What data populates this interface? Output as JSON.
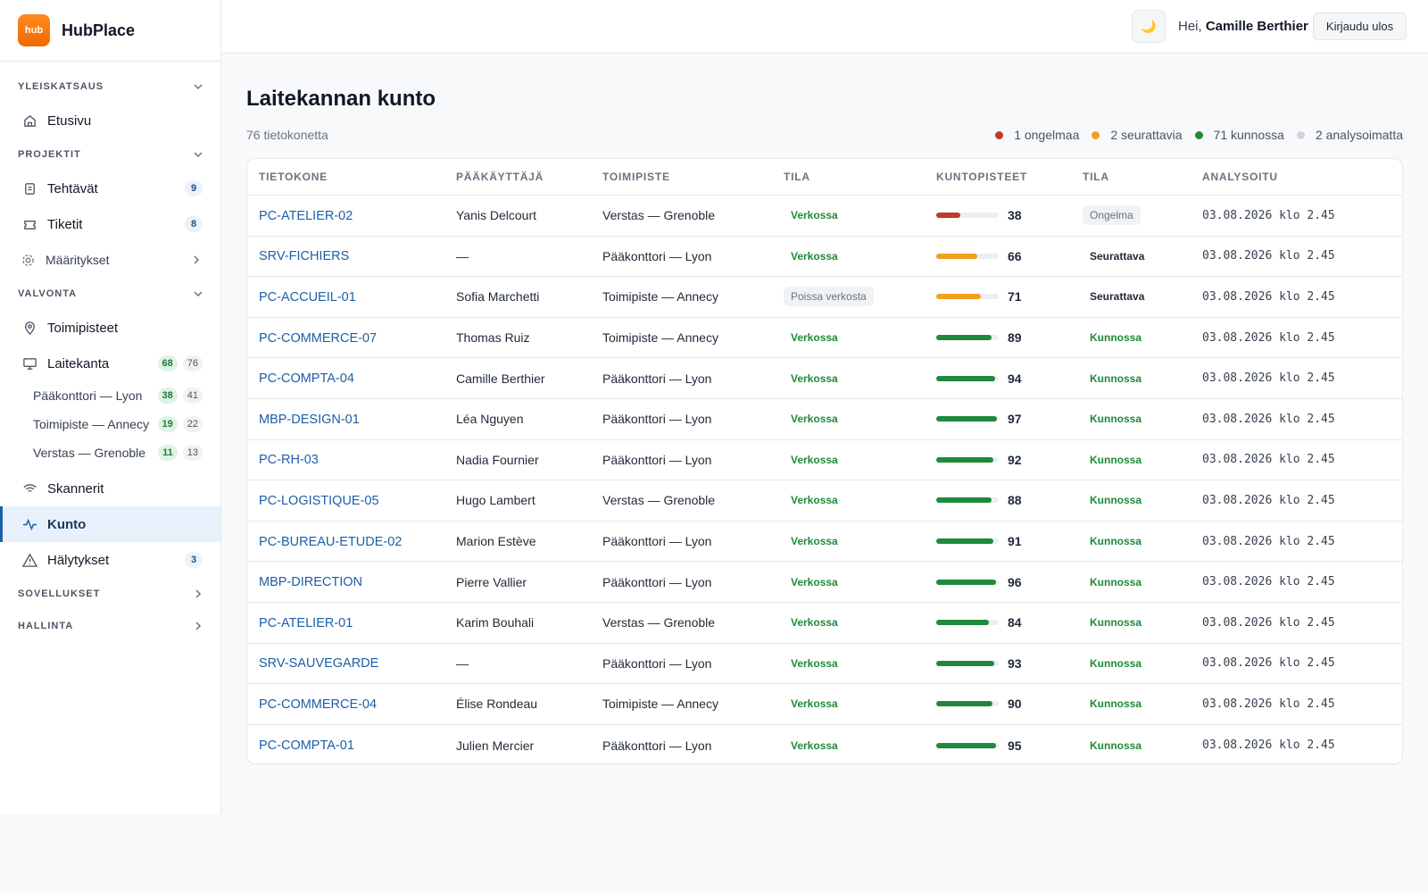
{
  "brand": {
    "logo_text": "hub",
    "name": "HubPlace"
  },
  "topbar": {
    "theme_icon": "moon-icon",
    "greeting": "Hei, ",
    "user": "Camille Berthier",
    "logout": "Kirjaudu ulos"
  },
  "sidebar": {
    "sections": [
      {
        "label": "YLEISKATSAUS"
      },
      {
        "label": "PROJEKTIT"
      },
      {
        "label": "VALVONTA"
      },
      {
        "label": "SOVELLUKSET"
      },
      {
        "label": "HALLINTA"
      }
    ],
    "items": {
      "etusivu": {
        "label": "Etusivu"
      },
      "tehtavat": {
        "label": "Tehtävät",
        "badge": "9"
      },
      "tiketit": {
        "label": "Tiketit",
        "badge": "8"
      },
      "maaritykset": {
        "label": "Määritykset"
      },
      "toimipisteet": {
        "label": "Toimipisteet"
      },
      "laitekanta": {
        "label": "Laitekanta",
        "ok": "68",
        "total": "76"
      },
      "skannerit": {
        "label": "Skannerit"
      },
      "kunto": {
        "label": "Kunto"
      },
      "halytykset": {
        "label": "Hälytykset",
        "badge": "3"
      }
    },
    "sites": [
      {
        "label": "Pääkonttori — Lyon",
        "ok": "38",
        "total": "41"
      },
      {
        "label": "Toimipiste — Annecy",
        "ok": "19",
        "total": "22"
      },
      {
        "label": "Verstas — Grenoble",
        "ok": "11",
        "total": "13"
      }
    ]
  },
  "main": {
    "title": "Laitekannan kunto",
    "count": "76 tietokonetta",
    "legend": [
      {
        "label": "1 ongelmaa",
        "color": "#c0392b"
      },
      {
        "label": "2 seurattavia",
        "color": "#f0a020"
      },
      {
        "label": "71 kunnossa",
        "color": "#1f8a3b"
      },
      {
        "label": "2 analysoimatta",
        "color": "#d1d5db"
      }
    ],
    "columns": [
      "TIETOKONE",
      "PÄÄKÄYTTÄJÄ",
      "TOIMIPISTE",
      "TILA",
      "KUNTOPISTEET",
      "TILA",
      "ANALYSOITU"
    ],
    "rows": [
      {
        "host": "PC-ATELIER-02",
        "user": "Yanis Delcourt",
        "site": "Verstas — Grenoble",
        "net": "Verkossa",
        "score": "38",
        "health": "Ongelma",
        "analyzed": "03.08.2026 klo 2.45"
      },
      {
        "host": "SRV-FICHIERS",
        "user": "—",
        "site": "Pääkonttori — Lyon",
        "net": "Verkossa",
        "score": "66",
        "health": "Seurattava",
        "analyzed": "03.08.2026 klo 2.45"
      },
      {
        "host": "PC-ACCUEIL-01",
        "user": "Sofia Marchetti",
        "site": "Toimipiste — Annecy",
        "net": "Poissa verkosta",
        "score": "71",
        "health": "Seurattava",
        "analyzed": "03.08.2026 klo 2.45"
      },
      {
        "host": "PC-COMMERCE-07",
        "user": "Thomas Ruiz",
        "site": "Toimipiste — Annecy",
        "net": "Verkossa",
        "score": "89",
        "health": "Kunnossa",
        "analyzed": "03.08.2026 klo 2.45"
      },
      {
        "host": "PC-COMPTA-04",
        "user": "Camille Berthier",
        "site": "Pääkonttori — Lyon",
        "net": "Verkossa",
        "score": "94",
        "health": "Kunnossa",
        "analyzed": "03.08.2026 klo 2.45"
      },
      {
        "host": "MBP-DESIGN-01",
        "user": "Léa Nguyen",
        "site": "Pääkonttori — Lyon",
        "net": "Verkossa",
        "score": "97",
        "health": "Kunnossa",
        "analyzed": "03.08.2026 klo 2.45"
      },
      {
        "host": "PC-RH-03",
        "user": "Nadia Fournier",
        "site": "Pääkonttori — Lyon",
        "net": "Verkossa",
        "score": "92",
        "health": "Kunnossa",
        "analyzed": "03.08.2026 klo 2.45"
      },
      {
        "host": "PC-LOGISTIQUE-05",
        "user": "Hugo Lambert",
        "site": "Verstas — Grenoble",
        "net": "Verkossa",
        "score": "88",
        "health": "Kunnossa",
        "analyzed": "03.08.2026 klo 2.45"
      },
      {
        "host": "PC-BUREAU-ETUDE-02",
        "user": "Marion Estève",
        "site": "Pääkonttori — Lyon",
        "net": "Verkossa",
        "score": "91",
        "health": "Kunnossa",
        "analyzed": "03.08.2026 klo 2.45"
      },
      {
        "host": "MBP-DIRECTION",
        "user": "Pierre Vallier",
        "site": "Pääkonttori — Lyon",
        "net": "Verkossa",
        "score": "96",
        "health": "Kunnossa",
        "analyzed": "03.08.2026 klo 2.45"
      },
      {
        "host": "PC-ATELIER-01",
        "user": "Karim Bouhali",
        "site": "Verstas — Grenoble",
        "net": "Verkossa",
        "score": "84",
        "health": "Kunnossa",
        "analyzed": "03.08.2026 klo 2.45"
      },
      {
        "host": "SRV-SAUVEGARDE",
        "user": "—",
        "site": "Pääkonttori — Lyon",
        "net": "Verkossa",
        "score": "93",
        "health": "Kunnossa",
        "analyzed": "03.08.2026 klo 2.45"
      },
      {
        "host": "PC-COMMERCE-04",
        "user": "Élise Rondeau",
        "site": "Toimipiste — Annecy",
        "net": "Verkossa",
        "score": "90",
        "health": "Kunnossa",
        "analyzed": "03.08.2026 klo 2.45"
      },
      {
        "host": "PC-COMPTA-01",
        "user": "Julien Mercier",
        "site": "Pääkonttori — Lyon",
        "net": "Verkossa",
        "score": "95",
        "health": "Kunnossa",
        "analyzed": "03.08.2026 klo 2.45"
      }
    ]
  },
  "colors": {
    "problem": "#c0392b",
    "watch": "#f0a020",
    "ok": "#1f8a3b",
    "accent": "#1d5fa7"
  }
}
